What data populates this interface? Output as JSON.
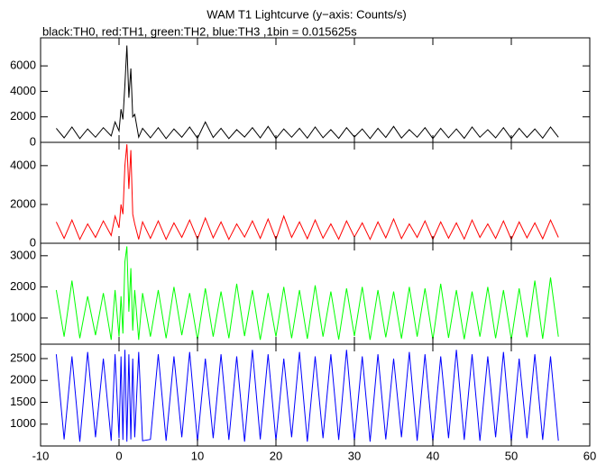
{
  "chart_data": [
    {
      "type": "line",
      "title": "WAM T1 Lightcurve (y−axis: Counts/s)",
      "subtitle": "black:TH0, red:TH1, green:TH2, blue:TH3 ,1bin = 0.015625s",
      "x": [
        -8,
        -7,
        -6,
        -5,
        -4,
        -3,
        -2,
        -1,
        -0.5,
        0,
        0.25,
        0.5,
        0.75,
        1,
        1.25,
        1.5,
        1.75,
        2,
        2.5,
        3,
        4,
        5,
        6,
        7,
        8,
        9,
        10,
        11,
        12,
        13,
        14,
        15,
        16,
        17,
        18,
        19,
        20,
        21,
        22,
        23,
        24,
        25,
        26,
        27,
        28,
        29,
        30,
        31,
        32,
        33,
        34,
        35,
        36,
        37,
        38,
        39,
        40,
        41,
        42,
        43,
        44,
        45,
        46,
        47,
        48,
        49,
        50,
        51,
        52,
        53,
        54,
        55,
        56
      ],
      "series": [
        {
          "color": "#000000",
          "values": [
            1100,
            350,
            1200,
            300,
            1050,
            400,
            1150,
            500,
            1600,
            900,
            2600,
            1800,
            4500,
            7600,
            3500,
            5800,
            2000,
            2200,
            400,
            1100,
            350,
            1150,
            300,
            1050,
            400,
            1200,
            320,
            1600,
            380,
            1100,
            300,
            1000,
            420,
            1150,
            350,
            1250,
            300,
            1050,
            400,
            1100,
            330,
            1200,
            360,
            1000,
            310,
            1150,
            420,
            1050,
            300,
            1100,
            380,
            1250,
            340,
            1000,
            400,
            1150,
            300,
            1100,
            360,
            1050,
            320,
            1200,
            400,
            1000,
            350,
            1150,
            300,
            1100,
            380,
            1050,
            330,
            1200,
            400
          ]
        }
      ],
      "ylim": [
        0,
        8200
      ],
      "yticks": [
        0,
        2000,
        4000,
        6000
      ]
    },
    {
      "type": "line",
      "x": [
        -8,
        -7,
        -6,
        -5,
        -4,
        -3,
        -2,
        -1,
        -0.5,
        0,
        0.25,
        0.5,
        0.75,
        1,
        1.25,
        1.5,
        1.75,
        2,
        2.5,
        3,
        4,
        5,
        6,
        7,
        8,
        9,
        10,
        11,
        12,
        13,
        14,
        15,
        16,
        17,
        18,
        19,
        20,
        21,
        22,
        23,
        24,
        25,
        26,
        27,
        28,
        29,
        30,
        31,
        32,
        33,
        34,
        35,
        36,
        37,
        38,
        39,
        40,
        41,
        42,
        43,
        44,
        45,
        46,
        47,
        48,
        49,
        50,
        51,
        52,
        53,
        54,
        55,
        56
      ],
      "series": [
        {
          "color": "#ff0000",
          "values": [
            1100,
            250,
            1200,
            200,
            1000,
            300,
            1150,
            400,
            1400,
            800,
            2000,
            1500,
            4000,
            5100,
            2800,
            4800,
            1500,
            1000,
            200,
            1100,
            250,
            1150,
            200,
            1050,
            300,
            1200,
            220,
            1300,
            280,
            1100,
            200,
            1000,
            320,
            1150,
            250,
            1250,
            200,
            1400,
            300,
            1100,
            230,
            1200,
            260,
            1000,
            210,
            1150,
            320,
            1050,
            200,
            1100,
            280,
            1250,
            240,
            1000,
            300,
            1150,
            200,
            1100,
            260,
            1050,
            220,
            1200,
            300,
            1000,
            250,
            1150,
            200,
            1100,
            280,
            1050,
            230,
            1200,
            300
          ]
        }
      ],
      "ylim": [
        0,
        5200
      ],
      "yticks": [
        0,
        2000,
        4000
      ]
    },
    {
      "type": "line",
      "x": [
        -8,
        -7,
        -6,
        -5,
        -4,
        -3,
        -2,
        -1,
        -0.5,
        0,
        0.25,
        0.5,
        0.75,
        1,
        1.25,
        1.5,
        1.75,
        2,
        2.5,
        3,
        4,
        5,
        6,
        7,
        8,
        9,
        10,
        11,
        12,
        13,
        14,
        15,
        16,
        17,
        18,
        19,
        20,
        21,
        22,
        23,
        24,
        25,
        26,
        27,
        28,
        29,
        30,
        31,
        32,
        33,
        34,
        35,
        36,
        37,
        38,
        39,
        40,
        41,
        42,
        43,
        44,
        45,
        46,
        47,
        48,
        49,
        50,
        51,
        52,
        53,
        54,
        55,
        56
      ],
      "series": [
        {
          "color": "#00ff00",
          "values": [
            1900,
            400,
            2200,
            350,
            1700,
            450,
            1800,
            300,
            1900,
            400,
            1700,
            500,
            2800,
            3300,
            1200,
            2600,
            600,
            1900,
            300,
            1800,
            400,
            1900,
            350,
            2000,
            450,
            1800,
            300,
            1950,
            400,
            1850,
            350,
            2100,
            420,
            1900,
            300,
            1800,
            400,
            2000,
            350,
            1900,
            330,
            2050,
            400,
            1850,
            310,
            1950,
            420,
            2000,
            300,
            1900,
            380,
            1850,
            340,
            2000,
            400,
            1950,
            300,
            2100,
            360,
            1900,
            320,
            1850,
            400,
            2000,
            350,
            1900,
            300,
            1950,
            380,
            2200,
            330,
            2300,
            400
          ]
        }
      ],
      "ylim": [
        160,
        3400
      ],
      "yticks": [
        1000,
        2000,
        3000
      ]
    },
    {
      "type": "line",
      "x": [
        -8,
        -7,
        -6,
        -5,
        -4,
        -3,
        -2,
        -1,
        -0.5,
        0,
        0.25,
        0.5,
        0.75,
        1,
        1.25,
        1.5,
        1.75,
        2,
        2.5,
        3,
        4,
        5,
        6,
        7,
        8,
        9,
        10,
        11,
        12,
        13,
        14,
        15,
        16,
        17,
        18,
        19,
        20,
        21,
        22,
        23,
        24,
        25,
        26,
        27,
        28,
        29,
        30,
        31,
        32,
        33,
        34,
        35,
        36,
        37,
        38,
        39,
        40,
        41,
        42,
        43,
        44,
        45,
        46,
        47,
        48,
        49,
        50,
        51,
        52,
        53,
        54,
        55,
        56
      ],
      "series": [
        {
          "color": "#0000ff",
          "values": [
            2600,
            650,
            2550,
            600,
            2650,
            700,
            2500,
            620,
            2600,
            680,
            2550,
            640,
            2700,
            600,
            2600,
            650,
            2500,
            700,
            2650,
            620,
            650,
            2600,
            620,
            2550,
            700,
            2650,
            600,
            2500,
            680,
            2600,
            640,
            2550,
            600,
            2700,
            650,
            2600,
            620,
            2500,
            700,
            2650,
            600,
            2550,
            680,
            2600,
            640,
            2700,
            620,
            2550,
            600,
            2600,
            650,
            2500,
            700,
            2650,
            620,
            2600,
            600,
            2550,
            680,
            2700,
            640,
            2600,
            620,
            2550,
            700,
            2650,
            600,
            2500,
            680,
            2600,
            640,
            2550,
            620
          ]
        }
      ],
      "ylim": [
        500,
        2830
      ],
      "yticks": [
        1000,
        1500,
        2000,
        2500
      ],
      "xlim": [
        -10,
        60
      ],
      "xticks": [
        -10,
        0,
        10,
        20,
        30,
        40,
        50,
        60
      ]
    }
  ]
}
